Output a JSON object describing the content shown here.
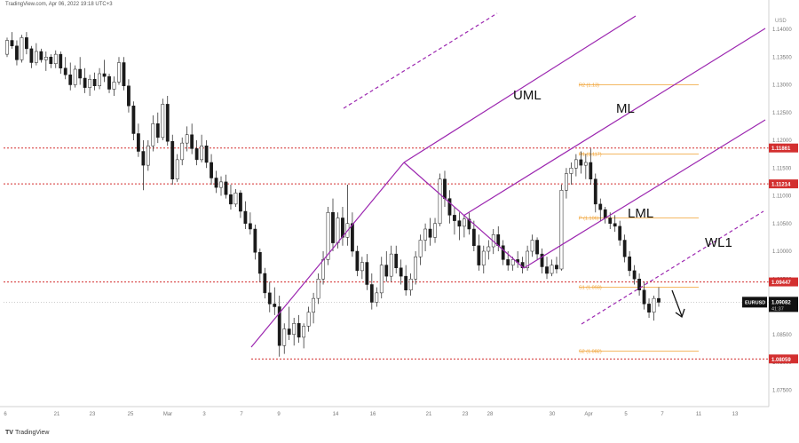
{
  "header": {
    "text": "TradingView.com, Apr 06, 2022 19:18 UTC+3"
  },
  "footer": {
    "logo_glyph": "TV",
    "brand": "TradingView"
  },
  "chart_data": {
    "type": "candlestick",
    "symbol": "EURUSD",
    "currency_label": "USD",
    "last_price": "1.09082",
    "countdown": "41:37",
    "y_ticks": [
      "1.14000",
      "1.13500",
      "1.13000",
      "1.12500",
      "1.12000",
      "1.11500",
      "1.11000",
      "1.10500",
      "1.10000",
      "1.09500",
      "1.09000",
      "1.08500",
      "1.08000",
      "1.07500"
    ],
    "x_ticks": [
      "6",
      "21",
      "23",
      "25",
      "Mar",
      "3",
      "7",
      "9",
      "14",
      "16",
      "21",
      "23",
      "28",
      "30",
      "Apr",
      "5",
      "7",
      "11",
      "13"
    ],
    "ylim": [
      1.072,
      1.144
    ],
    "bearish_color": "#1a1a1a",
    "bullish_color": "#ffffff",
    "candles": [
      [
        1.1355,
        1.1385,
        1.135,
        1.138
      ],
      [
        1.138,
        1.1395,
        1.1365,
        1.137
      ],
      [
        1.137,
        1.138,
        1.1335,
        1.1345
      ],
      [
        1.1345,
        1.139,
        1.134,
        1.1385
      ],
      [
        1.1385,
        1.1395,
        1.1355,
        1.1365
      ],
      [
        1.1365,
        1.137,
        1.133,
        1.134
      ],
      [
        1.134,
        1.1375,
        1.1335,
        1.136
      ],
      [
        1.136,
        1.1365,
        1.134,
        1.1345
      ],
      [
        1.1345,
        1.136,
        1.1325,
        1.135
      ],
      [
        1.135,
        1.1355,
        1.133,
        1.1338
      ],
      [
        1.1338,
        1.1362,
        1.133,
        1.1355
      ],
      [
        1.1355,
        1.136,
        1.132,
        1.133
      ],
      [
        1.133,
        1.135,
        1.131,
        1.1318
      ],
      [
        1.1318,
        1.134,
        1.129,
        1.13
      ],
      [
        1.13,
        1.1335,
        1.1295,
        1.1328
      ],
      [
        1.1328,
        1.135,
        1.13,
        1.1312
      ],
      [
        1.1312,
        1.133,
        1.1285,
        1.1295
      ],
      [
        1.1295,
        1.1318,
        1.128,
        1.131
      ],
      [
        1.131,
        1.1322,
        1.129,
        1.1298
      ],
      [
        1.1298,
        1.133,
        1.1292,
        1.132
      ],
      [
        1.132,
        1.1345,
        1.1305,
        1.1315
      ],
      [
        1.1315,
        1.132,
        1.1285,
        1.1292
      ],
      [
        1.1292,
        1.1315,
        1.128,
        1.1305
      ],
      [
        1.1305,
        1.135,
        1.13,
        1.134
      ],
      [
        1.134,
        1.135,
        1.129,
        1.1298
      ],
      [
        1.1298,
        1.131,
        1.125,
        1.1262
      ],
      [
        1.1262,
        1.127,
        1.12,
        1.1212
      ],
      [
        1.1212,
        1.123,
        1.117,
        1.118
      ],
      [
        1.118,
        1.12,
        1.111,
        1.1155
      ],
      [
        1.1155,
        1.12,
        1.1145,
        1.119
      ],
      [
        1.119,
        1.1245,
        1.118,
        1.123
      ],
      [
        1.123,
        1.125,
        1.1195,
        1.1205
      ],
      [
        1.1205,
        1.1275,
        1.12,
        1.1265
      ],
      [
        1.1265,
        1.128,
        1.119,
        1.1198
      ],
      [
        1.1198,
        1.121,
        1.112,
        1.113
      ],
      [
        1.113,
        1.1175,
        1.1125,
        1.1165
      ],
      [
        1.1165,
        1.1205,
        1.1155,
        1.1195
      ],
      [
        1.1195,
        1.1225,
        1.118,
        1.121
      ],
      [
        1.121,
        1.123,
        1.1175,
        1.1185
      ],
      [
        1.1185,
        1.12,
        1.1155,
        1.1165
      ],
      [
        1.1165,
        1.121,
        1.116,
        1.119
      ],
      [
        1.119,
        1.12,
        1.115,
        1.116
      ],
      [
        1.116,
        1.1175,
        1.112,
        1.1132
      ],
      [
        1.1132,
        1.1145,
        1.1105,
        1.1115
      ],
      [
        1.1115,
        1.1135,
        1.11,
        1.1125
      ],
      [
        1.1125,
        1.1138,
        1.1095,
        1.1102
      ],
      [
        1.1102,
        1.112,
        1.1075,
        1.1085
      ],
      [
        1.1085,
        1.1112,
        1.108,
        1.1105
      ],
      [
        1.1105,
        1.111,
        1.106,
        1.1072
      ],
      [
        1.1072,
        1.109,
        1.104,
        1.105
      ],
      [
        1.105,
        1.107,
        1.103,
        1.104
      ],
      [
        1.104,
        1.1048,
        1.0985,
        1.0998
      ],
      [
        1.0998,
        1.1005,
        1.0945,
        1.096
      ],
      [
        1.096,
        1.097,
        1.0915,
        1.0925
      ],
      [
        1.0925,
        1.0945,
        1.089,
        1.0905
      ],
      [
        1.0905,
        1.0935,
        1.0885,
        1.09
      ],
      [
        1.09,
        1.092,
        1.081,
        1.083
      ],
      [
        1.083,
        1.087,
        1.0815,
        1.086
      ],
      [
        1.086,
        1.09,
        1.084,
        1.085
      ],
      [
        1.085,
        1.088,
        1.083,
        1.087
      ],
      [
        1.087,
        1.0885,
        1.0835,
        1.0845
      ],
      [
        1.0845,
        1.087,
        1.0825,
        1.0865
      ],
      [
        1.0865,
        1.09,
        1.0855,
        1.089
      ],
      [
        1.089,
        1.0925,
        1.087,
        1.0915
      ],
      [
        1.0915,
        1.096,
        1.0905,
        1.095
      ],
      [
        1.095,
        1.1,
        1.094,
        1.0985
      ],
      [
        1.0985,
        1.108,
        1.0975,
        1.107
      ],
      [
        1.107,
        1.1095,
        1.1,
        1.1015
      ],
      [
        1.1015,
        1.107,
        1.1005,
        1.106
      ],
      [
        1.106,
        1.108,
        1.101,
        1.1025
      ],
      [
        1.1025,
        1.112,
        1.101,
        1.105
      ],
      [
        1.105,
        1.107,
        1.099,
        1.1
      ],
      [
        1.1,
        1.101,
        1.0955,
        1.0965
      ],
      [
        1.0965,
        1.099,
        1.095,
        1.098
      ],
      [
        1.098,
        1.0995,
        1.093,
        1.094
      ],
      [
        1.094,
        1.096,
        1.0895,
        1.0908
      ],
      [
        1.0908,
        1.0935,
        1.09,
        1.0925
      ],
      [
        1.0925,
        1.099,
        1.0915,
        1.0975
      ],
      [
        1.0975,
        1.1,
        1.0945,
        1.0955
      ],
      [
        1.0955,
        1.101,
        1.0945,
        1.0995
      ],
      [
        1.0995,
        1.101,
        1.096,
        1.097
      ],
      [
        1.097,
        1.0985,
        1.094,
        1.0955
      ],
      [
        1.0955,
        1.0975,
        1.092,
        1.093
      ],
      [
        1.093,
        1.096,
        1.092,
        1.095
      ],
      [
        1.095,
        1.1,
        1.094,
        1.099
      ],
      [
        1.099,
        1.103,
        1.0975,
        1.102
      ],
      [
        1.102,
        1.105,
        1.1,
        1.104
      ],
      [
        1.104,
        1.106,
        1.101,
        1.1025
      ],
      [
        1.1025,
        1.106,
        1.1015,
        1.105
      ],
      [
        1.105,
        1.114,
        1.1045,
        1.113
      ],
      [
        1.113,
        1.1145,
        1.108,
        1.1095
      ],
      [
        1.1095,
        1.111,
        1.105,
        1.1065
      ],
      [
        1.1065,
        1.108,
        1.103,
        1.1055
      ],
      [
        1.1055,
        1.107,
        1.102,
        1.1045
      ],
      [
        1.1045,
        1.1065,
        1.1025,
        1.1058
      ],
      [
        1.1058,
        1.107,
        1.103,
        1.104
      ],
      [
        1.104,
        1.1055,
        1.1,
        1.101
      ],
      [
        1.101,
        1.103,
        1.0965,
        1.0975
      ],
      [
        1.0975,
        1.101,
        1.096,
        1.1
      ],
      [
        1.1,
        1.102,
        1.0985,
        1.1008
      ],
      [
        1.1008,
        1.104,
        1.0995,
        1.103
      ],
      [
        1.103,
        1.1045,
        1.1,
        1.101
      ],
      [
        1.101,
        1.102,
        1.0975,
        1.0985
      ],
      [
        1.0985,
        1.1,
        1.0965,
        1.0975
      ],
      [
        1.0975,
        1.099,
        1.0965,
        1.0985
      ],
      [
        1.0985,
        1.1,
        1.097,
        1.098
      ],
      [
        1.098,
        1.099,
        1.096,
        1.097
      ],
      [
        1.097,
        1.101,
        1.0965,
        1.1
      ],
      [
        1.1,
        1.103,
        1.099,
        1.102
      ],
      [
        1.102,
        1.1025,
        1.0985,
        1.0995
      ],
      [
        1.0995,
        1.1005,
        1.096,
        1.0972
      ],
      [
        1.0972,
        1.099,
        1.095,
        1.096
      ],
      [
        1.096,
        1.0985,
        1.0955,
        1.0975
      ],
      [
        1.0975,
        1.099,
        1.096,
        1.0968
      ],
      [
        1.0968,
        1.112,
        1.0965,
        1.111
      ],
      [
        1.111,
        1.115,
        1.1095,
        1.114
      ],
      [
        1.114,
        1.116,
        1.112,
        1.115
      ],
      [
        1.115,
        1.1175,
        1.1135,
        1.1165
      ],
      [
        1.1165,
        1.118,
        1.114,
        1.1155
      ],
      [
        1.1155,
        1.1175,
        1.113,
        1.116
      ],
      [
        1.116,
        1.1185,
        1.112,
        1.113
      ],
      [
        1.113,
        1.114,
        1.107,
        1.1085
      ],
      [
        1.1085,
        1.1095,
        1.1055,
        1.1075
      ],
      [
        1.1075,
        1.108,
        1.105,
        1.106
      ],
      [
        1.106,
        1.107,
        1.104,
        1.105
      ],
      [
        1.105,
        1.1065,
        1.1035,
        1.1045
      ],
      [
        1.1045,
        1.1055,
        1.101,
        1.102
      ],
      [
        1.102,
        1.103,
        1.098,
        1.099
      ],
      [
        1.099,
        1.1,
        1.0955,
        1.0965
      ],
      [
        1.0965,
        1.0975,
        1.094,
        1.095
      ],
      [
        1.095,
        1.096,
        1.092,
        1.093
      ],
      [
        1.093,
        1.0945,
        1.0895,
        1.0905
      ],
      [
        1.0905,
        1.0915,
        1.088,
        1.089
      ],
      [
        1.089,
        1.092,
        1.0875,
        1.0915
      ],
      [
        1.0915,
        1.0935,
        1.09,
        1.0908
      ]
    ],
    "horizontal_levels": [
      {
        "label": "1.11861",
        "value": 1.11861,
        "color": "#d32f2f"
      },
      {
        "label": "1.11214",
        "value": 1.11214,
        "color": "#d32f2f"
      },
      {
        "label": "1.09447",
        "value": 1.09447,
        "color": "#d32f2f"
      },
      {
        "label": "1.08059",
        "value": 1.08059,
        "color": "#d32f2f"
      }
    ],
    "pivot_levels": [
      {
        "label": "R2 (1.13)",
        "value": 1.13
      },
      {
        "label": "R1 (1.117)",
        "value": 1.1175
      },
      {
        "label": "P (1.106)",
        "value": 1.106
      },
      {
        "label": "S1 (1.093)",
        "value": 1.0935
      },
      {
        "label": "S2 (1.082)",
        "value": 1.082
      }
    ],
    "pivot_color": "#f0a030",
    "pitchfork_color": "#9c27b0",
    "annotations": [
      "UML",
      "ML",
      "LML",
      "WL1"
    ]
  }
}
